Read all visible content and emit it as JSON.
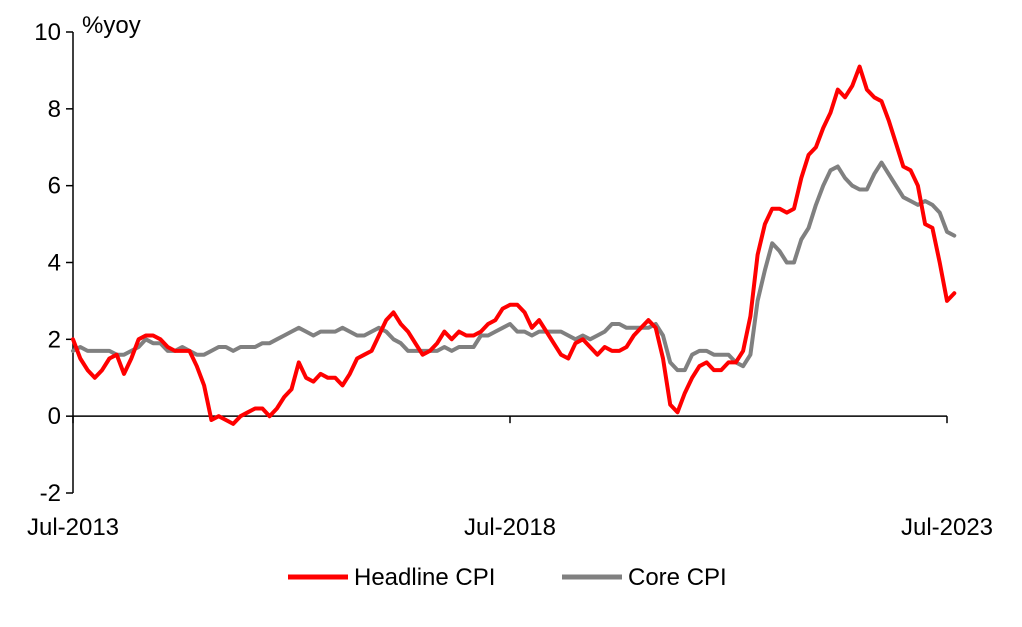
{
  "chart_data": {
    "type": "line",
    "title": "",
    "ylabel": "%yoy",
    "xlabel": "",
    "ylim": [
      -2,
      10
    ],
    "yticks": [
      -2,
      0,
      2,
      4,
      6,
      8,
      10
    ],
    "xlim": [
      "2013-07",
      "2023-07"
    ],
    "xtick_labels": [
      "Jul-2013",
      "Jul-2018",
      "Jul-2023"
    ],
    "xticks": [
      "2013-07",
      "2018-07",
      "2023-07"
    ],
    "grid": false,
    "legend": "bottom",
    "start_month": "2013-07",
    "series": [
      {
        "name": "Headline CPI",
        "color": "#ff0000",
        "values": [
          2.0,
          1.5,
          1.2,
          1.0,
          1.2,
          1.5,
          1.6,
          1.1,
          1.5,
          2.0,
          2.1,
          2.1,
          2.0,
          1.8,
          1.7,
          1.7,
          1.7,
          1.3,
          0.8,
          -0.1,
          0.0,
          -0.1,
          -0.2,
          0.0,
          0.1,
          0.2,
          0.2,
          0.0,
          0.2,
          0.5,
          0.7,
          1.4,
          1.0,
          0.9,
          1.1,
          1.0,
          1.0,
          0.8,
          1.1,
          1.5,
          1.6,
          1.7,
          2.1,
          2.5,
          2.7,
          2.4,
          2.2,
          1.9,
          1.6,
          1.7,
          1.9,
          2.2,
          2.0,
          2.2,
          2.1,
          2.1,
          2.2,
          2.4,
          2.5,
          2.8,
          2.9,
          2.9,
          2.7,
          2.3,
          2.5,
          2.2,
          1.9,
          1.6,
          1.5,
          1.9,
          2.0,
          1.8,
          1.6,
          1.8,
          1.7,
          1.7,
          1.8,
          2.1,
          2.3,
          2.5,
          2.3,
          1.5,
          0.3,
          0.1,
          0.6,
          1.0,
          1.3,
          1.4,
          1.2,
          1.2,
          1.4,
          1.4,
          1.7,
          2.6,
          4.2,
          5.0,
          5.4,
          5.4,
          5.3,
          5.4,
          6.2,
          6.8,
          7.0,
          7.5,
          7.9,
          8.5,
          8.3,
          8.6,
          9.1,
          8.5,
          8.3,
          8.2,
          7.7,
          7.1,
          6.5,
          6.4,
          6.0,
          5.0,
          4.9,
          4.0,
          3.0,
          3.2
        ]
      },
      {
        "name": "Core CPI",
        "color": "#808080",
        "values": [
          1.7,
          1.8,
          1.7,
          1.7,
          1.7,
          1.7,
          1.6,
          1.6,
          1.7,
          1.8,
          2.0,
          1.9,
          1.9,
          1.7,
          1.7,
          1.8,
          1.7,
          1.6,
          1.6,
          1.7,
          1.8,
          1.8,
          1.7,
          1.8,
          1.8,
          1.8,
          1.9,
          1.9,
          2.0,
          2.1,
          2.2,
          2.3,
          2.2,
          2.1,
          2.2,
          2.2,
          2.2,
          2.3,
          2.2,
          2.1,
          2.1,
          2.2,
          2.3,
          2.2,
          2.0,
          1.9,
          1.7,
          1.7,
          1.7,
          1.7,
          1.7,
          1.8,
          1.7,
          1.8,
          1.8,
          1.8,
          2.1,
          2.1,
          2.2,
          2.3,
          2.4,
          2.2,
          2.2,
          2.1,
          2.2,
          2.2,
          2.2,
          2.2,
          2.1,
          2.0,
          2.1,
          2.0,
          2.1,
          2.2,
          2.4,
          2.4,
          2.3,
          2.3,
          2.3,
          2.3,
          2.4,
          2.1,
          1.4,
          1.2,
          1.2,
          1.6,
          1.7,
          1.7,
          1.6,
          1.6,
          1.6,
          1.4,
          1.3,
          1.6,
          3.0,
          3.8,
          4.5,
          4.3,
          4.0,
          4.0,
          4.6,
          4.9,
          5.5,
          6.0,
          6.4,
          6.5,
          6.2,
          6.0,
          5.9,
          5.9,
          6.3,
          6.6,
          6.3,
          6.0,
          5.7,
          5.6,
          5.5,
          5.6,
          5.5,
          5.3,
          4.8,
          4.7
        ]
      }
    ]
  }
}
